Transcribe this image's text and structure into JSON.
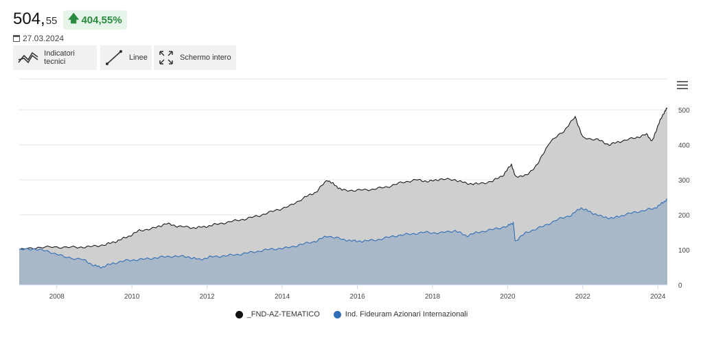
{
  "header": {
    "price_int": "504,",
    "price_dec": "55",
    "change": "404,55%",
    "date": "27.03.2024"
  },
  "toolbar": {
    "indicators_label": "Indicatori tecnici",
    "lines_label": "Linee",
    "fullscreen_label": "Schermo intero"
  },
  "colors": {
    "fund_line": "#1a1a1a",
    "fund_fill": "#cfcfcf",
    "index_line": "#2f6db5",
    "index_fill": "#a7b6c8",
    "badge_green": "#2a8a3e"
  },
  "chart_data": {
    "type": "area",
    "xlabel": "",
    "ylabel": "",
    "ylim": [
      0,
      500
    ],
    "xlim": [
      2007.0,
      2024.25
    ],
    "y_ticks": [
      "0",
      "100",
      "200",
      "300",
      "400",
      "500"
    ],
    "x_ticks": [
      "2008",
      "2010",
      "2012",
      "2014",
      "2016",
      "2018",
      "2020",
      "2022",
      "2024"
    ],
    "grid": true,
    "legend_position": "bottom-center",
    "series": [
      {
        "name": "_FND-AZ-TEMATICO",
        "color": "#1a1a1a",
        "points": [
          [
            2007.0,
            100
          ],
          [
            2007.5,
            107
          ],
          [
            2008.0,
            108
          ],
          [
            2008.5,
            107
          ],
          [
            2008.9,
            109
          ],
          [
            2009.3,
            115
          ],
          [
            2009.6,
            125
          ],
          [
            2009.9,
            138
          ],
          [
            2010.2,
            155
          ],
          [
            2010.6,
            162
          ],
          [
            2010.9,
            175
          ],
          [
            2011.2,
            168
          ],
          [
            2011.6,
            163
          ],
          [
            2011.9,
            165
          ],
          [
            2012.2,
            172
          ],
          [
            2012.6,
            180
          ],
          [
            2013.0,
            188
          ],
          [
            2013.4,
            198
          ],
          [
            2013.8,
            212
          ],
          [
            2014.2,
            225
          ],
          [
            2014.6,
            250
          ],
          [
            2014.9,
            265
          ],
          [
            2015.2,
            300
          ],
          [
            2015.4,
            285
          ],
          [
            2015.6,
            270
          ],
          [
            2016.0,
            270
          ],
          [
            2016.4,
            273
          ],
          [
            2016.8,
            280
          ],
          [
            2017.2,
            293
          ],
          [
            2017.6,
            300
          ],
          [
            2017.9,
            295
          ],
          [
            2018.2,
            302
          ],
          [
            2018.6,
            300
          ],
          [
            2018.9,
            290
          ],
          [
            2019.2,
            288
          ],
          [
            2019.6,
            296
          ],
          [
            2019.9,
            315
          ],
          [
            2020.1,
            345
          ],
          [
            2020.2,
            310
          ],
          [
            2020.5,
            312
          ],
          [
            2020.8,
            345
          ],
          [
            2021.1,
            405
          ],
          [
            2021.5,
            440
          ],
          [
            2021.8,
            480
          ],
          [
            2022.0,
            420
          ],
          [
            2022.4,
            415
          ],
          [
            2022.7,
            400
          ],
          [
            2023.0,
            410
          ],
          [
            2023.4,
            420
          ],
          [
            2023.7,
            430
          ],
          [
            2023.85,
            410
          ],
          [
            2024.0,
            455
          ],
          [
            2024.15,
            490
          ],
          [
            2024.25,
            505
          ]
        ]
      },
      {
        "name": "Ind. Fideuram Azionari Internazionali",
        "color": "#2f6db5",
        "points": [
          [
            2007.0,
            100
          ],
          [
            2007.4,
            103
          ],
          [
            2007.8,
            95
          ],
          [
            2008.2,
            80
          ],
          [
            2008.7,
            72
          ],
          [
            2009.0,
            55
          ],
          [
            2009.2,
            50
          ],
          [
            2009.5,
            62
          ],
          [
            2009.9,
            70
          ],
          [
            2010.3,
            73
          ],
          [
            2010.7,
            78
          ],
          [
            2011.1,
            82
          ],
          [
            2011.5,
            80
          ],
          [
            2011.8,
            72
          ],
          [
            2012.1,
            80
          ],
          [
            2012.5,
            83
          ],
          [
            2012.9,
            88
          ],
          [
            2013.3,
            95
          ],
          [
            2013.7,
            102
          ],
          [
            2014.1,
            105
          ],
          [
            2014.5,
            115
          ],
          [
            2014.9,
            125
          ],
          [
            2015.2,
            140
          ],
          [
            2015.6,
            130
          ],
          [
            2015.9,
            125
          ],
          [
            2016.2,
            125
          ],
          [
            2016.6,
            130
          ],
          [
            2017.0,
            140
          ],
          [
            2017.4,
            145
          ],
          [
            2017.8,
            150
          ],
          [
            2018.2,
            148
          ],
          [
            2018.6,
            155
          ],
          [
            2018.9,
            140
          ],
          [
            2019.2,
            150
          ],
          [
            2019.6,
            158
          ],
          [
            2020.0,
            168
          ],
          [
            2020.15,
            178
          ],
          [
            2020.2,
            125
          ],
          [
            2020.5,
            150
          ],
          [
            2020.9,
            165
          ],
          [
            2021.3,
            185
          ],
          [
            2021.7,
            200
          ],
          [
            2021.95,
            220
          ],
          [
            2022.2,
            208
          ],
          [
            2022.5,
            195
          ],
          [
            2022.8,
            190
          ],
          [
            2023.1,
            200
          ],
          [
            2023.5,
            210
          ],
          [
            2023.9,
            218
          ],
          [
            2024.1,
            232
          ],
          [
            2024.25,
            245
          ]
        ]
      }
    ]
  }
}
